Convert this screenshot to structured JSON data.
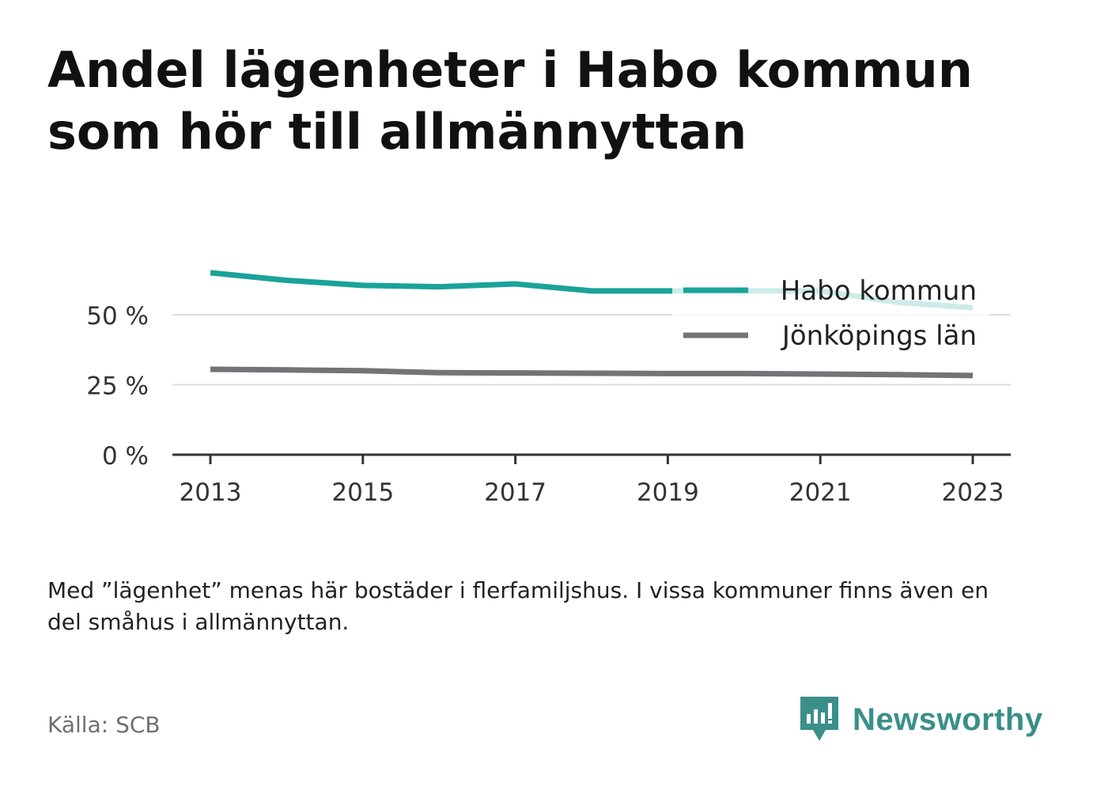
{
  "title": "Andel lägenheter i Habo kommun som hör till allmännyttan",
  "note": "Med ”lägenhet” menas här bostäder i flerfamiljshus. I vissa kommuner finns även en del småhus i allmännyttan.",
  "source": "Källa: SCB",
  "brand": {
    "name": "Newsworthy",
    "icon": "newsworthy-logo-icon",
    "color": "#3a8f89"
  },
  "chart_data": {
    "type": "line",
    "x": [
      2013,
      2014,
      2015,
      2016,
      2017,
      2018,
      2019,
      2020,
      2021,
      2022,
      2023
    ],
    "series": [
      {
        "name": "Habo kommun",
        "color": "#1aa39a",
        "values": [
          65.0,
          62.3,
          60.5,
          60.0,
          61.0,
          58.5,
          58.5,
          58.5,
          58.5,
          54.5,
          52.5
        ]
      },
      {
        "name": "Jönköpings län",
        "color": "#737378",
        "values": [
          30.5,
          30.3,
          30.0,
          29.3,
          29.2,
          29.1,
          29.0,
          29.0,
          28.8,
          28.6,
          28.3
        ]
      }
    ],
    "x_ticks": [
      "2013",
      "2015",
      "2017",
      "2019",
      "2021",
      "2023"
    ],
    "y_ticks": [
      {
        "value": 0,
        "label": "0 %"
      },
      {
        "value": 25,
        "label": "25 %"
      },
      {
        "value": 50,
        "label": "50 %"
      }
    ],
    "ylim": [
      0,
      65
    ],
    "grid": true,
    "legend_position": "top-right"
  }
}
